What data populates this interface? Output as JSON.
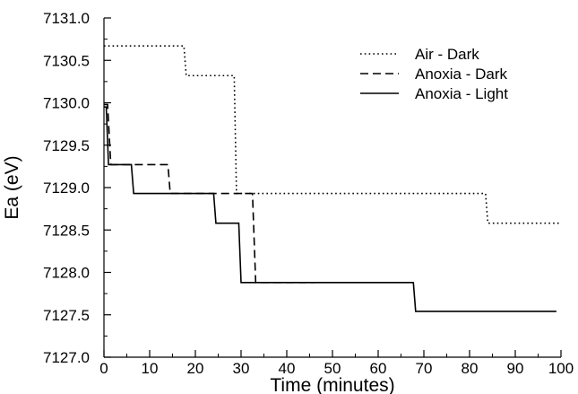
{
  "chart_data": {
    "type": "line",
    "xlabel": "Time (minutes)",
    "ylabel": "Ea (eV)",
    "xlim": [
      0,
      100
    ],
    "ylim": [
      7127.0,
      7131.0
    ],
    "x_ticks": [
      0,
      10,
      20,
      30,
      40,
      50,
      60,
      70,
      80,
      90,
      100
    ],
    "x_tick_labels": [
      "0",
      "10",
      "20",
      "30",
      "40",
      "50",
      "60",
      "70",
      "80",
      "90",
      "100"
    ],
    "y_ticks": [
      7127.0,
      7127.5,
      7128.0,
      7128.5,
      7129.0,
      7129.5,
      7130.0,
      7130.5,
      7131.0
    ],
    "y_tick_labels": [
      "7127.0",
      "7127.5",
      "7128.0",
      "7128.5",
      "7129.0",
      "7129.5",
      "7130.0",
      "7130.5",
      "7131.0"
    ],
    "legend_position": "top-right",
    "grid": false,
    "series": [
      {
        "name": "Air - Dark",
        "style": "dotted",
        "color": "#000000",
        "points": [
          [
            0,
            7130.67
          ],
          [
            17.5,
            7130.67
          ],
          [
            18,
            7130.32
          ],
          [
            28.5,
            7130.32
          ],
          [
            29,
            7128.93
          ],
          [
            83.5,
            7128.93
          ],
          [
            84,
            7128.58
          ],
          [
            100,
            7128.58
          ]
        ]
      },
      {
        "name": "Anoxia - Dark",
        "style": "dashed",
        "color": "#000000",
        "points": [
          [
            0,
            7129.98
          ],
          [
            0.8,
            7129.98
          ],
          [
            1.5,
            7129.27
          ],
          [
            14,
            7129.27
          ],
          [
            14.5,
            7128.93
          ],
          [
            32.5,
            7128.93
          ],
          [
            33.2,
            7127.88
          ],
          [
            46,
            7127.88
          ]
        ]
      },
      {
        "name": "Anoxia - Light",
        "style": "solid",
        "color": "#000000",
        "points": [
          [
            0,
            7129.95
          ],
          [
            0.5,
            7129.95
          ],
          [
            1,
            7129.27
          ],
          [
            6,
            7129.27
          ],
          [
            6.5,
            7128.93
          ],
          [
            24,
            7128.93
          ],
          [
            24.5,
            7128.58
          ],
          [
            29.5,
            7128.58
          ],
          [
            30,
            7127.88
          ],
          [
            67.7,
            7127.88
          ],
          [
            68.2,
            7127.54
          ],
          [
            99,
            7127.54
          ]
        ]
      }
    ]
  }
}
